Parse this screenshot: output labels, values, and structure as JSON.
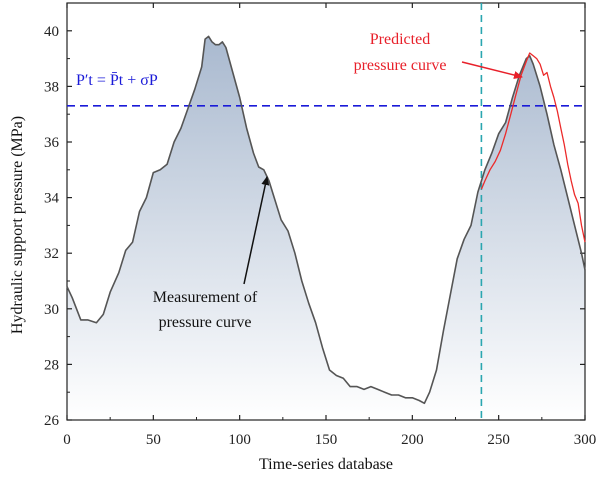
{
  "colors": {
    "measured": "#555555",
    "predicted": "#ec2a2a",
    "threshold": "#1a1ad8",
    "vline": "#2aa6b0",
    "fill_top": "#a9b9cf",
    "fill_bottom": "#ffffff"
  },
  "annotations": {
    "measured_label_1": "Measurement of",
    "measured_label_2": "pressure curve",
    "predicted_label_1": "Predicted",
    "predicted_label_2": "pressure curve",
    "formula": "P′t = P̄t + σP"
  },
  "chart_data": {
    "type": "line",
    "xlabel": "Time-series database",
    "ylabel": "Hydraulic support pressure (MPa)",
    "xlim": [
      0,
      300
    ],
    "ylim": [
      26,
      41
    ],
    "xticks": [
      0,
      50,
      100,
      150,
      200,
      250,
      300
    ],
    "yticks": [
      26,
      28,
      30,
      32,
      34,
      36,
      38,
      40
    ],
    "threshold_y": 37.3,
    "vline_x": 240,
    "series": [
      {
        "key": "measured",
        "x": [
          0,
          3,
          8,
          12,
          17,
          21,
          25,
          30,
          34,
          38,
          42,
          46,
          50,
          54,
          58,
          62,
          66,
          70,
          74,
          78,
          80,
          82,
          84,
          86,
          88,
          90,
          92,
          96,
          100,
          104,
          108,
          111,
          114,
          117,
          120,
          124,
          128,
          132,
          136,
          140,
          144,
          148,
          152,
          156,
          160,
          164,
          168,
          172,
          176,
          180,
          184,
          188,
          192,
          196,
          200,
          204,
          207,
          210,
          214,
          218,
          222,
          226,
          230,
          234,
          238,
          242,
          246,
          250,
          254,
          258,
          262,
          266,
          268,
          270,
          274,
          278,
          282,
          286,
          290,
          294,
          298,
          300
        ],
        "y": [
          30.8,
          30.4,
          29.6,
          29.6,
          29.5,
          29.8,
          30.6,
          31.3,
          32.1,
          32.4,
          33.5,
          34.0,
          34.9,
          35.0,
          35.2,
          36.0,
          36.5,
          37.2,
          37.9,
          38.7,
          39.7,
          39.8,
          39.6,
          39.5,
          39.5,
          39.6,
          39.4,
          38.5,
          37.6,
          36.5,
          35.6,
          35.1,
          35.0,
          34.6,
          34.0,
          33.2,
          32.8,
          32.0,
          31.0,
          30.2,
          29.5,
          28.6,
          27.8,
          27.6,
          27.5,
          27.2,
          27.2,
          27.1,
          27.2,
          27.1,
          27.0,
          26.9,
          26.9,
          26.8,
          26.8,
          26.7,
          26.6,
          27.0,
          27.8,
          29.2,
          30.5,
          31.8,
          32.5,
          33.0,
          34.2,
          35.0,
          35.6,
          36.3,
          36.7,
          37.6,
          38.4,
          39.0,
          39.1,
          38.8,
          38.0,
          37.0,
          35.9,
          35.0,
          34.0,
          33.0,
          32.0,
          31.4
        ]
      },
      {
        "key": "predicted",
        "x": [
          240,
          242,
          245,
          248,
          251,
          254,
          257,
          260,
          263,
          266,
          268,
          270,
          272,
          274,
          276,
          278,
          280,
          282,
          284,
          286,
          288,
          290,
          292,
          294,
          296,
          298,
          300
        ],
        "y": [
          34.3,
          34.6,
          35.0,
          35.3,
          35.7,
          36.3,
          37.0,
          37.7,
          38.4,
          38.9,
          39.2,
          39.1,
          39.0,
          38.8,
          38.4,
          38.5,
          38.0,
          37.6,
          37.1,
          36.5,
          35.9,
          35.2,
          34.6,
          34.1,
          33.8,
          33.0,
          32.4
        ]
      }
    ]
  }
}
